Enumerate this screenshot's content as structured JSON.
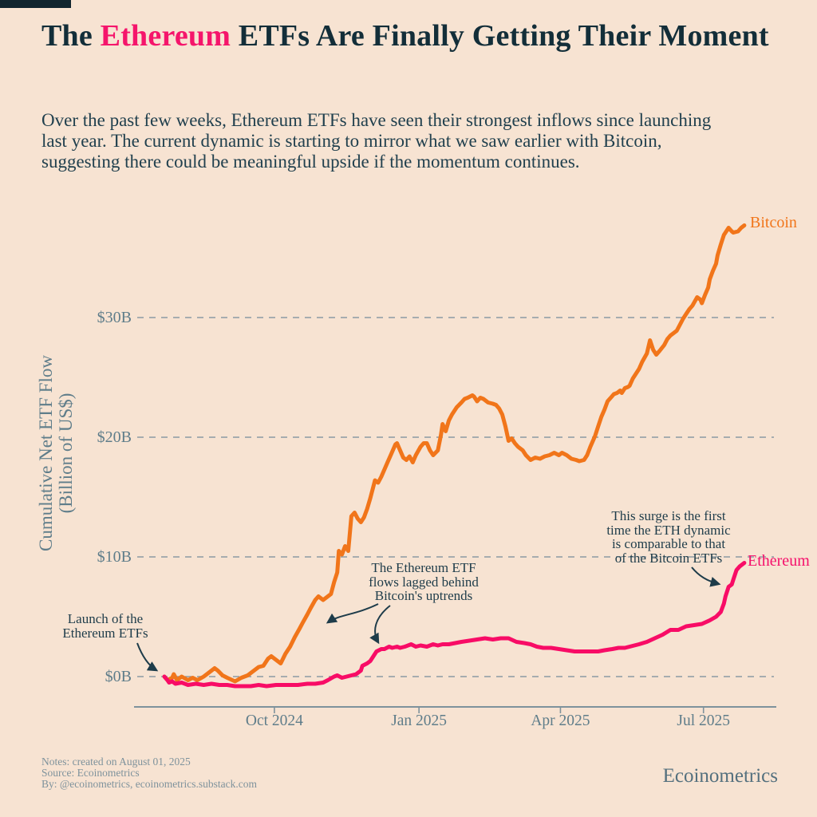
{
  "header": {
    "title_prefix": "The ",
    "title_highlight": "Ethereum",
    "title_suffix": " ETFs Are Finally Getting Their Moment",
    "intro_lines": [
      "Over the past few weeks, Ethereum ETFs have seen their strongest inflows since launching",
      "last year. The current dynamic is starting to mirror what we saw earlier with Bitcoin,",
      "suggesting there could be meaningful upside if the momentum continues."
    ]
  },
  "footer": {
    "notes": [
      "Notes: created on August 01, 2025",
      "Source: Ecoinometrics",
      "By: @ecoinometrics, ecoinometrics.substack.com"
    ],
    "brand": "Ecoinometrics"
  },
  "colors": {
    "background": "#f7e3d2",
    "title_dark": "#132e39",
    "highlight_pink": "#f5156b",
    "bitcoin_orange": "#f1751a",
    "ethereum_pink": "#f80c66",
    "axis_gray": "#5f7d8a",
    "gridline_gray": "#8c9aa3",
    "annotation_navy": "#1e3c4a"
  },
  "chart_data": {
    "type": "line",
    "ylabel_line1": "Cumulative Net ETF Flow",
    "ylabel_line2": "(Billion of US$)",
    "x_unit": "days since 2024-07-23 (Ethereum ETF launch day 0)",
    "grid": "horizontal dashed",
    "legend": "end-of-line labels",
    "ylim": [
      -2.5,
      40.5
    ],
    "xlim": [
      0,
      374
    ],
    "y_ticks": [
      {
        "label": "$0B",
        "value": 0
      },
      {
        "label": "$10B",
        "value": 10
      },
      {
        "label": "$20B",
        "value": 20
      },
      {
        "label": "$30B",
        "value": 30
      }
    ],
    "x_ticks": [
      {
        "label": "Oct 2024",
        "day": 70
      },
      {
        "label": "Jan 2025",
        "day": 162
      },
      {
        "label": "Apr 2025",
        "day": 252
      },
      {
        "label": "Jul 2025",
        "day": 343
      }
    ],
    "series": [
      {
        "name": "Bitcoin",
        "color": "#f1751a",
        "points": [
          [
            0,
            0
          ],
          [
            2,
            -0.3
          ],
          [
            5,
            -0.1
          ],
          [
            6,
            0.2
          ],
          [
            8,
            -0.3
          ],
          [
            11,
            0
          ],
          [
            15,
            -0.3
          ],
          [
            18,
            -0.1
          ],
          [
            21,
            -0.3
          ],
          [
            25,
            0
          ],
          [
            28,
            0.3
          ],
          [
            32,
            0.7
          ],
          [
            34,
            0.5
          ],
          [
            37,
            0.1
          ],
          [
            40,
            -0.1
          ],
          [
            45,
            -0.4
          ],
          [
            49,
            -0.1
          ],
          [
            53,
            0.1
          ],
          [
            57,
            0.5
          ],
          [
            60,
            0.8
          ],
          [
            63,
            0.9
          ],
          [
            66,
            1.5
          ],
          [
            68,
            1.7
          ],
          [
            71,
            1.4
          ],
          [
            74,
            1.1
          ],
          [
            77,
            1.9
          ],
          [
            80,
            2.5
          ],
          [
            83,
            3.3
          ],
          [
            86,
            4.0
          ],
          [
            88,
            4.5
          ],
          [
            91,
            5.2
          ],
          [
            93,
            5.7
          ],
          [
            96,
            6.4
          ],
          [
            98,
            6.7
          ],
          [
            101,
            6.4
          ],
          [
            104,
            6.7
          ],
          [
            106,
            6.9
          ],
          [
            108,
            7.9
          ],
          [
            110,
            8.7
          ],
          [
            111,
            10.5
          ],
          [
            113,
            10.2
          ],
          [
            115,
            10.9
          ],
          [
            117,
            10.5
          ],
          [
            119,
            13.4
          ],
          [
            121,
            13.7
          ],
          [
            123,
            13.2
          ],
          [
            125,
            12.9
          ],
          [
            127,
            13.3
          ],
          [
            129,
            14.0
          ],
          [
            131,
            14.9
          ],
          [
            134,
            16.4
          ],
          [
            136,
            16.2
          ],
          [
            138,
            16.7
          ],
          [
            140,
            17.3
          ],
          [
            142,
            17.9
          ],
          [
            144,
            18.5
          ],
          [
            147,
            19.4
          ],
          [
            148,
            19.5
          ],
          [
            150,
            18.9
          ],
          [
            152,
            18.3
          ],
          [
            154,
            18.1
          ],
          [
            156,
            18.4
          ],
          [
            158,
            17.9
          ],
          [
            160,
            18.5
          ],
          [
            163,
            19.2
          ],
          [
            165,
            19.5
          ],
          [
            167,
            19.5
          ],
          [
            169,
            18.9
          ],
          [
            171,
            18.5
          ],
          [
            174,
            18.9
          ],
          [
            176,
            20.2
          ],
          [
            177,
            21.1
          ],
          [
            179,
            20.5
          ],
          [
            181,
            21.4
          ],
          [
            183,
            21.9
          ],
          [
            186,
            22.5
          ],
          [
            189,
            22.9
          ],
          [
            191,
            23.2
          ],
          [
            193,
            23.3
          ],
          [
            196,
            23.5
          ],
          [
            197,
            23.4
          ],
          [
            199,
            23.0
          ],
          [
            201,
            23.3
          ],
          [
            203,
            23.2
          ],
          [
            206,
            22.9
          ],
          [
            209,
            22.8
          ],
          [
            211,
            22.7
          ],
          [
            213,
            22.4
          ],
          [
            215,
            21.9
          ],
          [
            217,
            20.9
          ],
          [
            219,
            19.7
          ],
          [
            221,
            19.9
          ],
          [
            223,
            19.5
          ],
          [
            225,
            19.2
          ],
          [
            228,
            18.9
          ],
          [
            230,
            18.5
          ],
          [
            233,
            18.1
          ],
          [
            236,
            18.3
          ],
          [
            239,
            18.2
          ],
          [
            242,
            18.4
          ],
          [
            245,
            18.5
          ],
          [
            248,
            18.7
          ],
          [
            251,
            18.5
          ],
          [
            253,
            18.7
          ],
          [
            256,
            18.5
          ],
          [
            259,
            18.2
          ],
          [
            262,
            18.1
          ],
          [
            264,
            18.0
          ],
          [
            267,
            18.1
          ],
          [
            269,
            18.5
          ],
          [
            271,
            19.2
          ],
          [
            274,
            20.1
          ],
          [
            276,
            20.9
          ],
          [
            278,
            21.7
          ],
          [
            280,
            22.3
          ],
          [
            282,
            23.0
          ],
          [
            284,
            23.3
          ],
          [
            286,
            23.6
          ],
          [
            288,
            23.7
          ],
          [
            290,
            23.9
          ],
          [
            291,
            23.7
          ],
          [
            293,
            24.1
          ],
          [
            295,
            24.2
          ],
          [
            296,
            24.3
          ],
          [
            298,
            24.9
          ],
          [
            302,
            25.7
          ],
          [
            304,
            26.3
          ],
          [
            307,
            27.0
          ],
          [
            309,
            28.1
          ],
          [
            311,
            27.3
          ],
          [
            313,
            26.9
          ],
          [
            315,
            27.2
          ],
          [
            318,
            27.7
          ],
          [
            320,
            28.2
          ],
          [
            322,
            28.5
          ],
          [
            324,
            28.7
          ],
          [
            326,
            28.9
          ],
          [
            328,
            29.4
          ],
          [
            330,
            29.9
          ],
          [
            332,
            30.3
          ],
          [
            334,
            30.7
          ],
          [
            336,
            31.0
          ],
          [
            339,
            31.7
          ],
          [
            341,
            31.5
          ],
          [
            342,
            31.2
          ],
          [
            344,
            31.9
          ],
          [
            346,
            32.5
          ],
          [
            347,
            33.2
          ],
          [
            349,
            33.9
          ],
          [
            351,
            34.5
          ],
          [
            352,
            35.2
          ],
          [
            354,
            36.1
          ],
          [
            356,
            36.9
          ],
          [
            359,
            37.5
          ],
          [
            361,
            37.2
          ],
          [
            362,
            37.1
          ],
          [
            365,
            37.2
          ],
          [
            367,
            37.5
          ],
          [
            369,
            37.7
          ]
        ]
      },
      {
        "name": "Ethereum",
        "color": "#f80c66",
        "points": [
          [
            0,
            0
          ],
          [
            2,
            -0.3
          ],
          [
            3,
            -0.5
          ],
          [
            5,
            -0.4
          ],
          [
            7,
            -0.6
          ],
          [
            11,
            -0.5
          ],
          [
            15,
            -0.7
          ],
          [
            20,
            -0.6
          ],
          [
            25,
            -0.7
          ],
          [
            30,
            -0.6
          ],
          [
            35,
            -0.7
          ],
          [
            40,
            -0.7
          ],
          [
            45,
            -0.8
          ],
          [
            50,
            -0.8
          ],
          [
            55,
            -0.8
          ],
          [
            60,
            -0.7
          ],
          [
            65,
            -0.8
          ],
          [
            71,
            -0.7
          ],
          [
            75,
            -0.7
          ],
          [
            80,
            -0.7
          ],
          [
            85,
            -0.7
          ],
          [
            91,
            -0.6
          ],
          [
            96,
            -0.6
          ],
          [
            101,
            -0.5
          ],
          [
            104,
            -0.3
          ],
          [
            108,
            0
          ],
          [
            110,
            0.1
          ],
          [
            113,
            -0.1
          ],
          [
            116,
            0
          ],
          [
            119,
            0.1
          ],
          [
            122,
            0.2
          ],
          [
            125,
            0.5
          ],
          [
            126,
            0.9
          ],
          [
            129,
            1.1
          ],
          [
            131,
            1.3
          ],
          [
            133,
            1.7
          ],
          [
            135,
            2.1
          ],
          [
            138,
            2.3
          ],
          [
            140,
            2.3
          ],
          [
            143,
            2.5
          ],
          [
            145,
            2.4
          ],
          [
            148,
            2.5
          ],
          [
            150,
            2.4
          ],
          [
            153,
            2.5
          ],
          [
            157,
            2.7
          ],
          [
            160,
            2.5
          ],
          [
            163,
            2.6
          ],
          [
            167,
            2.5
          ],
          [
            171,
            2.7
          ],
          [
            174,
            2.6
          ],
          [
            177,
            2.7
          ],
          [
            181,
            2.7
          ],
          [
            185,
            2.8
          ],
          [
            189,
            2.9
          ],
          [
            194,
            3.0
          ],
          [
            199,
            3.1
          ],
          [
            204,
            3.2
          ],
          [
            209,
            3.1
          ],
          [
            214,
            3.2
          ],
          [
            219,
            3.2
          ],
          [
            224,
            2.9
          ],
          [
            229,
            2.8
          ],
          [
            233,
            2.7
          ],
          [
            237,
            2.5
          ],
          [
            241,
            2.4
          ],
          [
            246,
            2.4
          ],
          [
            251,
            2.3
          ],
          [
            256,
            2.2
          ],
          [
            261,
            2.1
          ],
          [
            266,
            2.1
          ],
          [
            271,
            2.1
          ],
          [
            276,
            2.1
          ],
          [
            280,
            2.2
          ],
          [
            285,
            2.3
          ],
          [
            289,
            2.4
          ],
          [
            293,
            2.4
          ],
          [
            296,
            2.5
          ],
          [
            302,
            2.7
          ],
          [
            307,
            2.9
          ],
          [
            312,
            3.2
          ],
          [
            317,
            3.5
          ],
          [
            322,
            3.9
          ],
          [
            327,
            3.9
          ],
          [
            332,
            4.2
          ],
          [
            337,
            4.3
          ],
          [
            342,
            4.4
          ],
          [
            347,
            4.7
          ],
          [
            351,
            5.0
          ],
          [
            354,
            5.4
          ],
          [
            356,
            6.1
          ],
          [
            357,
            6.7
          ],
          [
            359,
            7.5
          ],
          [
            361,
            7.7
          ],
          [
            362,
            8.1
          ],
          [
            364,
            8.9
          ],
          [
            366,
            9.2
          ],
          [
            369,
            9.5
          ]
        ]
      }
    ],
    "annotations": [
      {
        "id": "launch",
        "text": "Launch of the\nEthereum ETFs"
      },
      {
        "id": "lagged",
        "text": "The Ethereum ETF\nflows lagged behind\nBitcoin's uptrends"
      },
      {
        "id": "surge",
        "text": "This surge is the first\ntime the ETH dynamic\nis comparable to that\nof the Bitcoin ETFs"
      }
    ]
  }
}
